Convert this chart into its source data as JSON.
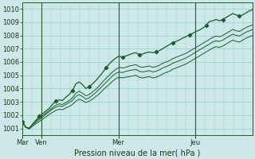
{
  "title": "Pression niveau de la mer( hPa )",
  "bg_color": "#cce8e8",
  "grid_color": "#99cccc",
  "line_color": "#1a5c2a",
  "ylim": [
    1000.5,
    1010.5
  ],
  "yticks": [
    1001,
    1002,
    1003,
    1004,
    1005,
    1006,
    1007,
    1008,
    1009,
    1010
  ],
  "xtick_positions": [
    0,
    24,
    120,
    216
  ],
  "xtick_labels": [
    "Mar",
    "Ven",
    "Mer",
    "Jeu"
  ],
  "vline_positions": [
    24,
    120,
    216
  ],
  "xlim": [
    0,
    288
  ],
  "series_top": [
    1001.5,
    1001.1,
    1001.0,
    1001.3,
    1001.6,
    1001.9,
    1002.1,
    1002.3,
    1002.5,
    1002.8,
    1003.05,
    1003.15,
    1003.1,
    1003.35,
    1003.55,
    1003.85,
    1004.35,
    1004.5,
    1004.3,
    1004.0,
    1004.15,
    1004.35,
    1004.6,
    1004.9,
    1005.2,
    1005.55,
    1005.85,
    1006.1,
    1006.3,
    1006.45,
    1006.35,
    1006.45,
    1006.55,
    1006.65,
    1006.7,
    1006.55,
    1006.6,
    1006.7,
    1006.75,
    1006.7,
    1006.75,
    1006.85,
    1007.0,
    1007.15,
    1007.3,
    1007.45,
    1007.55,
    1007.65,
    1007.8,
    1007.9,
    1008.05,
    1008.15,
    1008.3,
    1008.4,
    1008.55,
    1008.75,
    1009.05,
    1009.1,
    1009.2,
    1009.1,
    1009.2,
    1009.35,
    1009.5,
    1009.65,
    1009.55,
    1009.45,
    1009.55,
    1009.7,
    1009.85,
    1009.95
  ],
  "series_a": [
    1001.5,
    1001.1,
    1001.0,
    1001.3,
    1001.55,
    1001.75,
    1001.95,
    1002.15,
    1002.35,
    1002.55,
    1002.75,
    1002.85,
    1002.8,
    1002.95,
    1003.1,
    1003.3,
    1003.65,
    1003.8,
    1003.65,
    1003.45,
    1003.55,
    1003.75,
    1003.95,
    1004.2,
    1004.5,
    1004.75,
    1005.0,
    1005.25,
    1005.45,
    1005.6,
    1005.55,
    1005.6,
    1005.7,
    1005.75,
    1005.8,
    1005.65,
    1005.6,
    1005.65,
    1005.7,
    1005.6,
    1005.65,
    1005.75,
    1005.9,
    1006.0,
    1006.1,
    1006.25,
    1006.35,
    1006.45,
    1006.55,
    1006.65,
    1006.8,
    1006.95,
    1007.1,
    1007.25,
    1007.4,
    1007.55,
    1007.7,
    1007.85,
    1007.95,
    1007.9,
    1008.0,
    1008.15,
    1008.3,
    1008.45,
    1008.35,
    1008.3,
    1008.45,
    1008.6,
    1008.7,
    1008.8
  ],
  "series_b": [
    1001.5,
    1001.1,
    1001.0,
    1001.25,
    1001.45,
    1001.65,
    1001.85,
    1002.05,
    1002.25,
    1002.45,
    1002.6,
    1002.7,
    1002.65,
    1002.8,
    1002.95,
    1003.1,
    1003.4,
    1003.55,
    1003.4,
    1003.2,
    1003.3,
    1003.5,
    1003.7,
    1003.95,
    1004.2,
    1004.45,
    1004.7,
    1004.95,
    1005.15,
    1005.25,
    1005.2,
    1005.3,
    1005.35,
    1005.4,
    1005.45,
    1005.3,
    1005.25,
    1005.3,
    1005.35,
    1005.25,
    1005.3,
    1005.4,
    1005.55,
    1005.65,
    1005.75,
    1005.9,
    1006.0,
    1006.1,
    1006.2,
    1006.3,
    1006.45,
    1006.6,
    1006.75,
    1006.9,
    1007.05,
    1007.2,
    1007.35,
    1007.5,
    1007.6,
    1007.55,
    1007.65,
    1007.8,
    1007.95,
    1008.1,
    1008.0,
    1007.95,
    1008.1,
    1008.25,
    1008.35,
    1008.45
  ],
  "series_c": [
    1001.45,
    1001.1,
    1000.95,
    1001.15,
    1001.35,
    1001.5,
    1001.7,
    1001.85,
    1002.05,
    1002.2,
    1002.35,
    1002.45,
    1002.4,
    1002.55,
    1002.65,
    1002.8,
    1003.05,
    1003.2,
    1003.1,
    1002.95,
    1003.05,
    1003.2,
    1003.4,
    1003.6,
    1003.85,
    1004.1,
    1004.3,
    1004.55,
    1004.75,
    1004.85,
    1004.8,
    1004.85,
    1004.9,
    1004.95,
    1005.0,
    1004.85,
    1004.8,
    1004.85,
    1004.9,
    1004.8,
    1004.85,
    1004.95,
    1005.1,
    1005.2,
    1005.3,
    1005.45,
    1005.55,
    1005.65,
    1005.75,
    1005.85,
    1006.0,
    1006.15,
    1006.3,
    1006.45,
    1006.6,
    1006.75,
    1006.9,
    1007.05,
    1007.15,
    1007.1,
    1007.2,
    1007.35,
    1007.5,
    1007.65,
    1007.55,
    1007.5,
    1007.65,
    1007.8,
    1007.9,
    1008.0
  ]
}
